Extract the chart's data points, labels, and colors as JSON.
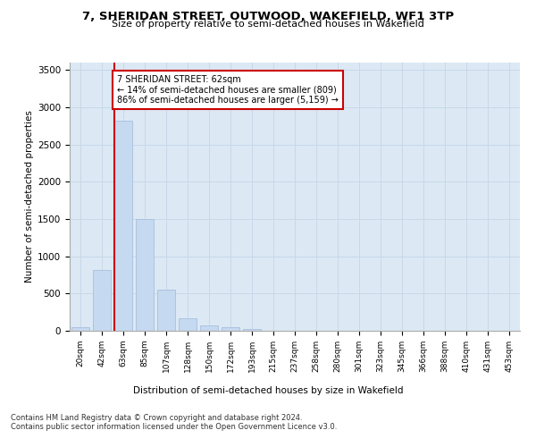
{
  "title1": "7, SHERIDAN STREET, OUTWOOD, WAKEFIELD, WF1 3TP",
  "title2": "Size of property relative to semi-detached houses in Wakefield",
  "xlabel": "Distribution of semi-detached houses by size in Wakefield",
  "ylabel": "Number of semi-detached properties",
  "categories": [
    "20sqm",
    "42sqm",
    "63sqm",
    "85sqm",
    "107sqm",
    "128sqm",
    "150sqm",
    "172sqm",
    "193sqm",
    "215sqm",
    "237sqm",
    "258sqm",
    "280sqm",
    "301sqm",
    "323sqm",
    "345sqm",
    "366sqm",
    "388sqm",
    "410sqm",
    "431sqm",
    "453sqm"
  ],
  "values": [
    50,
    820,
    2820,
    1500,
    550,
    170,
    70,
    50,
    30,
    5,
    0,
    0,
    0,
    0,
    0,
    0,
    0,
    0,
    0,
    0,
    0
  ],
  "bar_color": "#c5d9f0",
  "bar_edge_color": "#a0b8d8",
  "vline_color": "#cc0000",
  "annotation_text": "7 SHERIDAN STREET: 62sqm\n← 14% of semi-detached houses are smaller (809)\n86% of semi-detached houses are larger (5,159) →",
  "annotation_box_color": "#ffffff",
  "annotation_border_color": "#cc0000",
  "ylim": [
    0,
    3600
  ],
  "yticks": [
    0,
    500,
    1000,
    1500,
    2000,
    2500,
    3000,
    3500
  ],
  "grid_color": "#c8d8e8",
  "background_color": "#dce9f5",
  "footer1": "Contains HM Land Registry data © Crown copyright and database right 2024.",
  "footer2": "Contains public sector information licensed under the Open Government Licence v3.0."
}
